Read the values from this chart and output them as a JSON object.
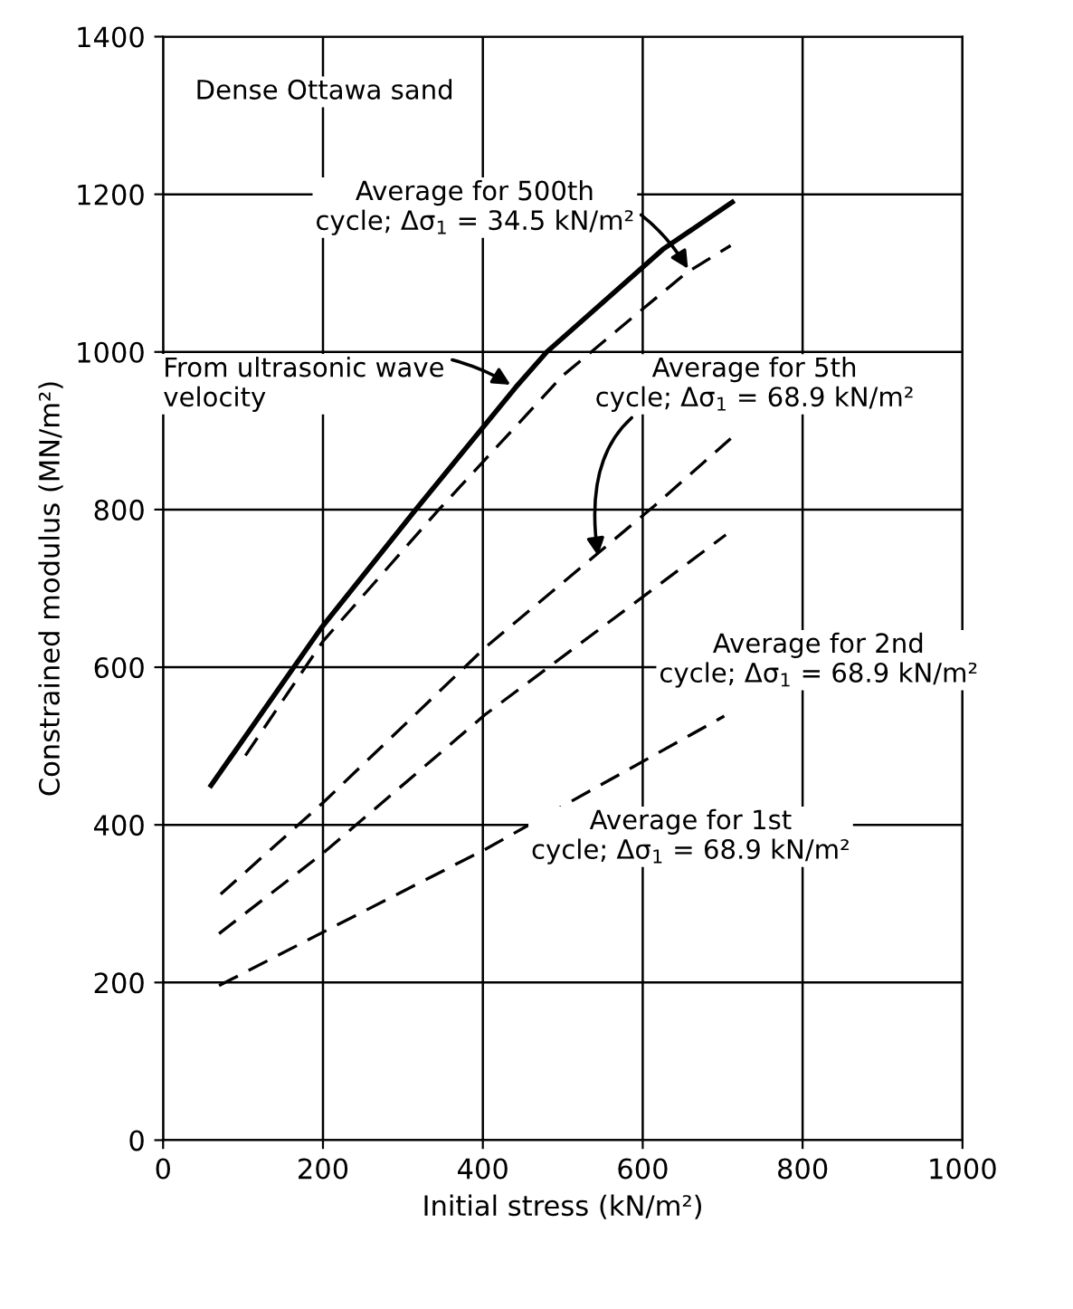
{
  "chart_data": {
    "type": "line",
    "xlabel": "Initial stress (kN/m²)",
    "ylabel": "Constrained modulus (MN/m²)",
    "xlim": [
      0,
      1000
    ],
    "ylim": [
      0,
      1400
    ],
    "xticks": [
      0,
      200,
      400,
      600,
      800,
      1000
    ],
    "yticks": [
      0,
      200,
      400,
      600,
      800,
      1000,
      1200,
      1400
    ],
    "grid": true,
    "marker": "none",
    "series": [
      {
        "color": "#000000",
        "line_style": "solid",
        "x": [
          60,
          198,
          316,
          441,
          480,
          625,
          712
        ],
        "values": [
          450,
          650,
          800,
          955,
          1000,
          1130,
          1190
        ]
      },
      {
        "color": "#000000",
        "line_style": "dashed",
        "x": [
          103,
          200,
          345,
          500,
          654,
          710
        ],
        "values": [
          488,
          633,
          800,
          970,
          1100,
          1135
        ]
      },
      {
        "color": "#000000",
        "line_style": "dashed",
        "x": [
          72,
          200,
          403,
          615,
          710
        ],
        "values": [
          312,
          428,
          625,
          805,
          890
        ]
      },
      {
        "color": "#000000",
        "line_style": "dashed",
        "x": [
          70,
          200,
          403,
          704
        ],
        "values": [
          262,
          364,
          540,
          768
        ]
      },
      {
        "color": "#000000",
        "line_style": "dashed",
        "x": [
          70,
          210,
          403,
          702
        ],
        "values": [
          196,
          269,
          369,
          538
        ]
      }
    ],
    "annotations": [
      "Dense Ottawa sand",
      {
        "text": "Average for 500th\ncycle; Δσ$_{1}$ = 34.5 kN/m²",
        "x": 660,
        "y": 1100
      },
      {
        "text": "From ultrasonic wave\nvelocity",
        "x": 440,
        "y": 955
      },
      {
        "text": "Average for 5th\ncycle; Δσ$_{1}$ = 68.9 kN/m²",
        "x": 545,
        "y": 735
      },
      "Average for 2nd\ncycle; Δσ$_{1}$ = 68.9 kN/m²",
      {
        "text": "Average for 1st\ncycle; Δσ$_{1}$ = 68.9 kN/m²",
        "x": 470,
        "y": 405
      }
    ]
  }
}
